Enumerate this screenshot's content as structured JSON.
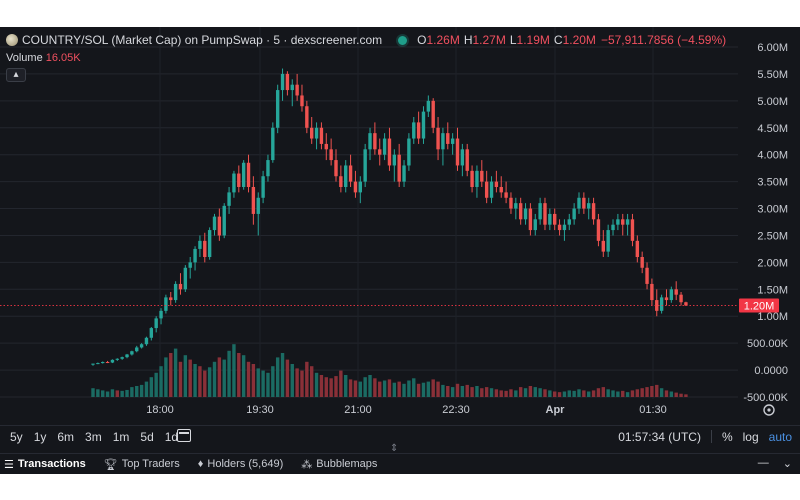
{
  "header": {
    "title": "COUNTRY/SOL (Market Cap) on PumpSwap · 5 · dexscreener.com",
    "ohlc": [
      {
        "label": "O",
        "value": "1.26M"
      },
      {
        "label": "H",
        "value": "1.27M"
      },
      {
        "label": "L",
        "value": "1.19M"
      },
      {
        "label": "C",
        "value": "1.20M"
      }
    ],
    "change": "−57,911.7856 (−4.59%)",
    "volume_label": "Volume",
    "volume_value": "16.05K",
    "collapse_icon": "chevron-up-icon"
  },
  "toolbar": {
    "ranges": [
      "5y",
      "1y",
      "6m",
      "3m",
      "1m",
      "5d",
      "1d"
    ],
    "calendar_icon": "calendar-icon",
    "time": "01:57:34 (UTC)",
    "percent": "%",
    "log": "log",
    "auto": "auto"
  },
  "tabs": [
    {
      "icon": "list-icon",
      "label": "Transactions"
    },
    {
      "icon": "trophy-icon",
      "label": "Top Traders"
    },
    {
      "icon": "diamond-icon",
      "label": "Holders (5,649)"
    },
    {
      "icon": "bubbles-icon",
      "label": "Bubblemaps"
    }
  ],
  "colors": {
    "up": "#26a69a",
    "down": "#ef5350",
    "volume_up": "#1b6b63",
    "volume_down": "#8a3038",
    "last_price": "#f23645"
  },
  "chart_data": {
    "type": "candlestick",
    "title": "COUNTRY/SOL (Market Cap) on PumpSwap · 5 · dexscreener.com",
    "xlabel": "",
    "ylabel": "",
    "x_ticks": [
      "18:00",
      "19:30",
      "21:00",
      "22:30",
      "Apr",
      "01:30"
    ],
    "y_ticks": [
      "6.00M",
      "5.50M",
      "5.00M",
      "4.50M",
      "4.00M",
      "3.50M",
      "3.00M",
      "2.50M",
      "2.00M",
      "1.50M",
      "1.00M",
      "500.00K",
      "0.0000",
      "-500.00K"
    ],
    "y_range": [
      -500000,
      6000000
    ],
    "last_price": 1200000,
    "last_price_label": "1.20M",
    "grid": true,
    "candles": [
      [
        0.1,
        0.12,
        0.08,
        0.12
      ],
      [
        0.12,
        0.14,
        0.11,
        0.13
      ],
      [
        0.13,
        0.16,
        0.12,
        0.15
      ],
      [
        0.15,
        0.17,
        0.13,
        0.14
      ],
      [
        0.14,
        0.2,
        0.13,
        0.19
      ],
      [
        0.19,
        0.22,
        0.17,
        0.21
      ],
      [
        0.21,
        0.25,
        0.19,
        0.24
      ],
      [
        0.24,
        0.3,
        0.22,
        0.29
      ],
      [
        0.29,
        0.36,
        0.27,
        0.35
      ],
      [
        0.35,
        0.45,
        0.33,
        0.42
      ],
      [
        0.42,
        0.5,
        0.4,
        0.48
      ],
      [
        0.48,
        0.62,
        0.45,
        0.6
      ],
      [
        0.6,
        0.8,
        0.55,
        0.78
      ],
      [
        0.78,
        1.0,
        0.7,
        0.96
      ],
      [
        0.96,
        1.15,
        0.85,
        1.1
      ],
      [
        1.1,
        1.4,
        1.05,
        1.35
      ],
      [
        1.35,
        1.45,
        1.2,
        1.3
      ],
      [
        1.3,
        1.65,
        1.25,
        1.6
      ],
      [
        1.6,
        1.8,
        1.4,
        1.5
      ],
      [
        1.5,
        1.95,
        1.45,
        1.9
      ],
      [
        1.9,
        2.1,
        1.7,
        2.0
      ],
      [
        2.0,
        2.3,
        1.85,
        2.25
      ],
      [
        2.25,
        2.5,
        2.1,
        2.4
      ],
      [
        2.4,
        2.55,
        2.0,
        2.1
      ],
      [
        2.1,
        2.65,
        2.05,
        2.6
      ],
      [
        2.6,
        2.9,
        2.5,
        2.85
      ],
      [
        2.85,
        3.0,
        2.4,
        2.5
      ],
      [
        2.5,
        3.1,
        2.45,
        3.05
      ],
      [
        3.05,
        3.4,
        2.9,
        3.3
      ],
      [
        3.3,
        3.7,
        3.2,
        3.65
      ],
      [
        3.65,
        3.8,
        3.3,
        3.4
      ],
      [
        3.4,
        3.9,
        3.35,
        3.85
      ],
      [
        3.85,
        4.0,
        3.3,
        3.4
      ],
      [
        3.4,
        3.6,
        2.7,
        2.9
      ],
      [
        2.9,
        3.3,
        2.5,
        3.2
      ],
      [
        3.2,
        3.7,
        3.1,
        3.6
      ],
      [
        3.6,
        4.0,
        3.5,
        3.9
      ],
      [
        3.9,
        4.6,
        3.85,
        4.5
      ],
      [
        4.5,
        5.3,
        4.4,
        5.2
      ],
      [
        5.2,
        5.6,
        5.0,
        5.5
      ],
      [
        5.5,
        5.55,
        5.1,
        5.2
      ],
      [
        5.2,
        5.4,
        4.9,
        5.3
      ],
      [
        5.3,
        5.5,
        5.0,
        5.1
      ],
      [
        5.1,
        5.3,
        4.8,
        4.9
      ],
      [
        4.9,
        5.0,
        4.4,
        4.5
      ],
      [
        4.5,
        4.7,
        4.2,
        4.3
      ],
      [
        4.3,
        4.6,
        4.1,
        4.5
      ],
      [
        4.5,
        4.6,
        4.1,
        4.2
      ],
      [
        4.2,
        4.4,
        3.9,
        4.1
      ],
      [
        4.1,
        4.3,
        3.8,
        3.9
      ],
      [
        3.9,
        4.1,
        3.5,
        3.6
      ],
      [
        3.6,
        3.8,
        3.3,
        3.4
      ],
      [
        3.4,
        3.9,
        3.3,
        3.8
      ],
      [
        3.8,
        4.0,
        3.4,
        3.5
      ],
      [
        3.5,
        3.7,
        3.2,
        3.3
      ],
      [
        3.3,
        3.6,
        3.1,
        3.5
      ],
      [
        3.5,
        4.2,
        3.4,
        4.1
      ],
      [
        4.1,
        4.5,
        3.9,
        4.4
      ],
      [
        4.4,
        4.6,
        4.0,
        4.1
      ],
      [
        4.1,
        4.3,
        3.8,
        4.0
      ],
      [
        4.0,
        4.4,
        3.9,
        4.3
      ],
      [
        4.3,
        4.5,
        3.7,
        3.8
      ],
      [
        3.8,
        4.1,
        3.5,
        4.0
      ],
      [
        4.0,
        4.2,
        3.4,
        3.5
      ],
      [
        3.5,
        3.9,
        3.4,
        3.8
      ],
      [
        3.8,
        4.4,
        3.7,
        4.3
      ],
      [
        4.3,
        4.7,
        4.2,
        4.6
      ],
      [
        4.6,
        4.8,
        4.2,
        4.3
      ],
      [
        4.3,
        4.9,
        4.2,
        4.8
      ],
      [
        4.8,
        5.1,
        4.7,
        5.0
      ],
      [
        5.0,
        5.05,
        4.4,
        4.5
      ],
      [
        4.5,
        4.7,
        3.9,
        4.1
      ],
      [
        4.1,
        4.5,
        3.8,
        4.4
      ],
      [
        4.4,
        4.6,
        4.1,
        4.2
      ],
      [
        4.2,
        4.4,
        4.0,
        4.3
      ],
      [
        4.3,
        4.5,
        3.7,
        3.8
      ],
      [
        3.8,
        4.2,
        3.6,
        4.1
      ],
      [
        4.1,
        4.2,
        3.6,
        3.7
      ],
      [
        3.7,
        3.8,
        3.3,
        3.4
      ],
      [
        3.4,
        3.8,
        3.2,
        3.7
      ],
      [
        3.7,
        3.9,
        3.4,
        3.5
      ],
      [
        3.5,
        3.7,
        3.1,
        3.2
      ],
      [
        3.2,
        3.6,
        3.1,
        3.5
      ],
      [
        3.5,
        3.7,
        3.3,
        3.4
      ],
      [
        3.4,
        3.6,
        3.2,
        3.3
      ],
      [
        3.3,
        3.5,
        3.1,
        3.2
      ],
      [
        3.2,
        3.3,
        2.9,
        3.0
      ],
      [
        3.0,
        3.2,
        2.8,
        3.1
      ],
      [
        3.1,
        3.2,
        2.7,
        2.8
      ],
      [
        2.8,
        3.1,
        2.7,
        3.0
      ],
      [
        3.0,
        3.1,
        2.5,
        2.6
      ],
      [
        2.6,
        2.9,
        2.5,
        2.8
      ],
      [
        2.8,
        3.2,
        2.7,
        3.1
      ],
      [
        3.1,
        3.2,
        2.6,
        2.7
      ],
      [
        2.7,
        3.0,
        2.6,
        2.9
      ],
      [
        2.9,
        3.0,
        2.6,
        2.7
      ],
      [
        2.7,
        2.8,
        2.5,
        2.6
      ],
      [
        2.6,
        2.8,
        2.4,
        2.7
      ],
      [
        2.7,
        2.9,
        2.6,
        2.8
      ],
      [
        2.8,
        3.1,
        2.7,
        3.0
      ],
      [
        3.0,
        3.3,
        2.9,
        3.2
      ],
      [
        3.2,
        3.3,
        2.9,
        3.0
      ],
      [
        3.0,
        3.2,
        2.8,
        3.1
      ],
      [
        3.1,
        3.2,
        2.7,
        2.8
      ],
      [
        2.8,
        2.9,
        2.3,
        2.4
      ],
      [
        2.4,
        2.6,
        2.1,
        2.2
      ],
      [
        2.2,
        2.7,
        2.1,
        2.6
      ],
      [
        2.6,
        2.8,
        2.5,
        2.7
      ],
      [
        2.7,
        2.9,
        2.6,
        2.8
      ],
      [
        2.8,
        2.9,
        2.5,
        2.7
      ],
      [
        2.7,
        2.9,
        2.5,
        2.8
      ],
      [
        2.8,
        2.9,
        2.3,
        2.4
      ],
      [
        2.4,
        2.5,
        2.0,
        2.1
      ],
      [
        2.1,
        2.2,
        1.8,
        1.9
      ],
      [
        1.9,
        2.0,
        1.5,
        1.6
      ],
      [
        1.6,
        1.7,
        1.2,
        1.3
      ],
      [
        1.3,
        1.5,
        1.0,
        1.1
      ],
      [
        1.1,
        1.4,
        1.05,
        1.35
      ],
      [
        1.35,
        1.5,
        1.2,
        1.3
      ],
      [
        1.3,
        1.55,
        1.25,
        1.5
      ],
      [
        1.5,
        1.65,
        1.3,
        1.4
      ],
      [
        1.4,
        1.45,
        1.2,
        1.26
      ],
      [
        1.26,
        1.27,
        1.19,
        1.2
      ]
    ],
    "volume": [
      [
        0.4,
        1
      ],
      [
        0.35,
        1
      ],
      [
        0.3,
        1
      ],
      [
        0.25,
        1
      ],
      [
        0.35,
        1
      ],
      [
        0.3,
        0
      ],
      [
        0.28,
        1
      ],
      [
        0.32,
        1
      ],
      [
        0.45,
        1
      ],
      [
        0.5,
        1
      ],
      [
        0.55,
        1
      ],
      [
        0.7,
        1
      ],
      [
        0.9,
        1
      ],
      [
        1.1,
        1
      ],
      [
        1.4,
        1
      ],
      [
        1.8,
        1
      ],
      [
        2.0,
        0
      ],
      [
        2.2,
        1
      ],
      [
        1.6,
        0
      ],
      [
        1.9,
        1
      ],
      [
        1.7,
        0
      ],
      [
        1.5,
        1
      ],
      [
        1.4,
        0
      ],
      [
        1.2,
        0
      ],
      [
        1.35,
        1
      ],
      [
        1.6,
        1
      ],
      [
        1.8,
        0
      ],
      [
        1.7,
        1
      ],
      [
        2.1,
        1
      ],
      [
        2.4,
        1
      ],
      [
        2.0,
        0
      ],
      [
        1.9,
        1
      ],
      [
        1.6,
        0
      ],
      [
        1.5,
        0
      ],
      [
        1.3,
        1
      ],
      [
        1.2,
        1
      ],
      [
        1.1,
        1
      ],
      [
        1.4,
        1
      ],
      [
        1.8,
        1
      ],
      [
        2.0,
        1
      ],
      [
        1.7,
        0
      ],
      [
        1.5,
        1
      ],
      [
        1.3,
        0
      ],
      [
        1.2,
        0
      ],
      [
        1.6,
        0
      ],
      [
        1.4,
        0
      ],
      [
        1.1,
        1
      ],
      [
        1.0,
        0
      ],
      [
        0.9,
        0
      ],
      [
        0.85,
        0
      ],
      [
        0.95,
        0
      ],
      [
        1.2,
        0
      ],
      [
        1.0,
        1
      ],
      [
        0.8,
        0
      ],
      [
        0.75,
        0
      ],
      [
        0.7,
        1
      ],
      [
        0.9,
        1
      ],
      [
        1.0,
        1
      ],
      [
        0.85,
        0
      ],
      [
        0.7,
        0
      ],
      [
        0.75,
        1
      ],
      [
        0.8,
        0
      ],
      [
        0.65,
        1
      ],
      [
        0.7,
        0
      ],
      [
        0.6,
        1
      ],
      [
        0.75,
        1
      ],
      [
        0.85,
        1
      ],
      [
        0.6,
        0
      ],
      [
        0.65,
        1
      ],
      [
        0.7,
        1
      ],
      [
        0.8,
        0
      ],
      [
        0.7,
        0
      ],
      [
        0.55,
        1
      ],
      [
        0.5,
        0
      ],
      [
        0.45,
        1
      ],
      [
        0.6,
        0
      ],
      [
        0.5,
        1
      ],
      [
        0.55,
        0
      ],
      [
        0.45,
        0
      ],
      [
        0.5,
        1
      ],
      [
        0.4,
        0
      ],
      [
        0.45,
        0
      ],
      [
        0.4,
        1
      ],
      [
        0.35,
        0
      ],
      [
        0.3,
        0
      ],
      [
        0.28,
        0
      ],
      [
        0.35,
        0
      ],
      [
        0.3,
        1
      ],
      [
        0.45,
        0
      ],
      [
        0.4,
        1
      ],
      [
        0.5,
        0
      ],
      [
        0.45,
        1
      ],
      [
        0.4,
        1
      ],
      [
        0.35,
        0
      ],
      [
        0.3,
        1
      ],
      [
        0.25,
        0
      ],
      [
        0.22,
        0
      ],
      [
        0.25,
        1
      ],
      [
        0.3,
        1
      ],
      [
        0.28,
        1
      ],
      [
        0.35,
        1
      ],
      [
        0.3,
        0
      ],
      [
        0.25,
        1
      ],
      [
        0.3,
        0
      ],
      [
        0.4,
        0
      ],
      [
        0.45,
        0
      ],
      [
        0.35,
        1
      ],
      [
        0.3,
        1
      ],
      [
        0.25,
        1
      ],
      [
        0.28,
        0
      ],
      [
        0.22,
        1
      ],
      [
        0.3,
        0
      ],
      [
        0.35,
        0
      ],
      [
        0.4,
        0
      ],
      [
        0.45,
        0
      ],
      [
        0.5,
        0
      ],
      [
        0.55,
        0
      ],
      [
        0.4,
        1
      ],
      [
        0.3,
        0
      ],
      [
        0.25,
        1
      ],
      [
        0.2,
        0
      ],
      [
        0.15,
        0
      ],
      [
        0.12,
        0
      ]
    ]
  }
}
